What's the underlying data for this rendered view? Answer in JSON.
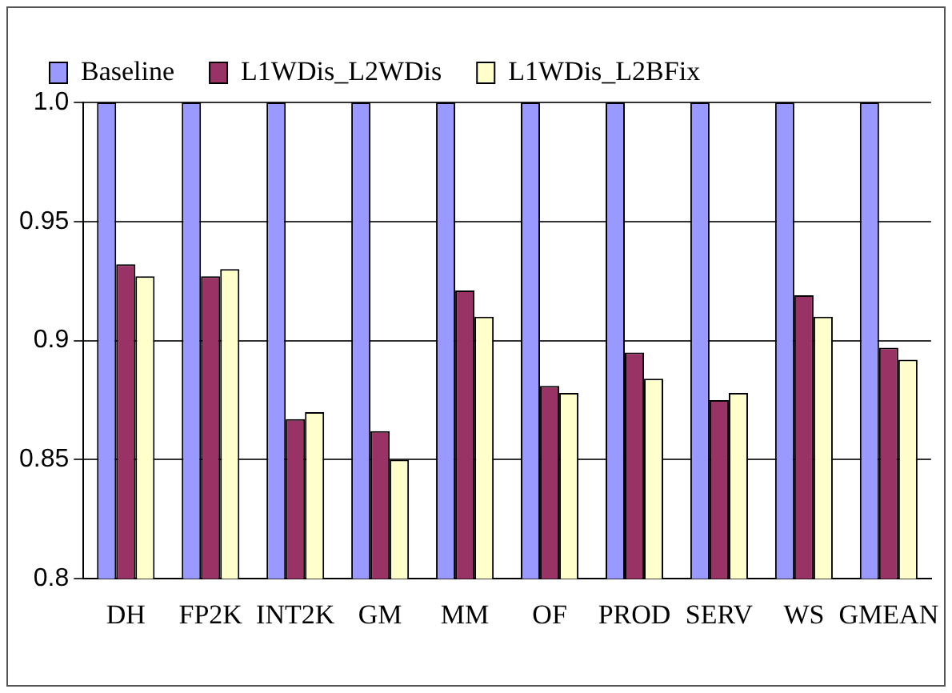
{
  "chart_data": {
    "type": "bar",
    "categories": [
      "DH",
      "FP2K",
      "INT2K",
      "GM",
      "MM",
      "OF",
      "PROD",
      "SERV",
      "WS",
      "GMEAN"
    ],
    "series": [
      {
        "name": "Baseline",
        "color": "#9999ff",
        "values": [
          1,
          1,
          1,
          1,
          1,
          1,
          1,
          1,
          1,
          1
        ]
      },
      {
        "name": "L1WDis_L2WDis",
        "color": "#993366",
        "values": [
          0.932,
          0.927,
          0.867,
          0.862,
          0.921,
          0.881,
          0.895,
          0.875,
          0.919,
          0.897
        ]
      },
      {
        "name": "L1WDis_L2BFix",
        "color": "#ffffcc",
        "values": [
          0.927,
          0.93,
          0.87,
          0.85,
          0.91,
          0.878,
          0.884,
          0.878,
          0.91,
          0.892
        ]
      }
    ],
    "ylim": [
      0.8,
      1
    ],
    "yticks": [
      0.8,
      0.85,
      0.9,
      0.95,
      {
        "value": 1,
        "label": "1.0"
      }
    ],
    "grid": "y",
    "legend": "top"
  }
}
